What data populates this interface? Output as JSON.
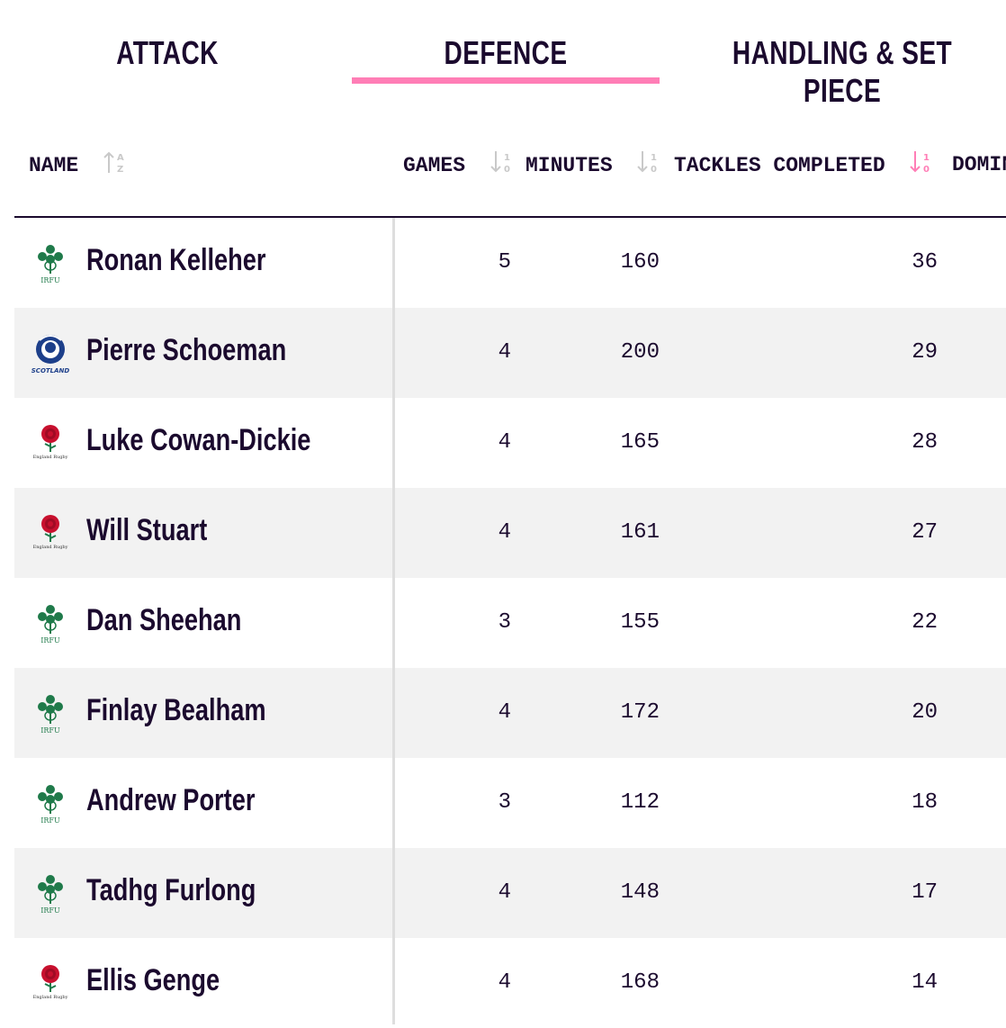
{
  "tabs": [
    {
      "label": "ATTACK",
      "active": false
    },
    {
      "label": "DEFENCE",
      "active": true
    },
    {
      "label": "HANDLING & SET PIECE",
      "active": false
    }
  ],
  "accent_color": "#ff7eb6",
  "columns": {
    "name": {
      "label": "NAME",
      "sort_icon": "sort-alpha-icon"
    },
    "games": {
      "label": "GAMES",
      "sort_icon": "sort-numeric-desc-icon"
    },
    "minutes": {
      "label": "MINUTES",
      "sort_icon": "sort-numeric-desc-icon"
    },
    "tackles": {
      "label": "TACKLES COMPLETED",
      "sort_icon": "sort-numeric-desc-icon",
      "active_sort": true
    },
    "next": {
      "label": "DOMIN"
    }
  },
  "team_logos": {
    "ireland": {
      "text": "IRFU",
      "color": "#1f7a4a"
    },
    "scotland": {
      "text": "SCOTLAND",
      "color": "#1d3f8a"
    },
    "england": {
      "text": "England Rugby",
      "color": "#c8102e"
    }
  },
  "players": [
    {
      "name": "Ronan Kelleher",
      "team": "ireland",
      "games": "5",
      "minutes": "160",
      "tackles": "36"
    },
    {
      "name": "Pierre Schoeman",
      "team": "scotland",
      "games": "4",
      "minutes": "200",
      "tackles": "29"
    },
    {
      "name": "Luke Cowan-Dickie",
      "team": "england",
      "games": "4",
      "minutes": "165",
      "tackles": "28"
    },
    {
      "name": "Will Stuart",
      "team": "england",
      "games": "4",
      "minutes": "161",
      "tackles": "27"
    },
    {
      "name": "Dan Sheehan",
      "team": "ireland",
      "games": "3",
      "minutes": "155",
      "tackles": "22"
    },
    {
      "name": "Finlay Bealham",
      "team": "ireland",
      "games": "4",
      "minutes": "172",
      "tackles": "20"
    },
    {
      "name": "Andrew Porter",
      "team": "ireland",
      "games": "3",
      "minutes": "112",
      "tackles": "18"
    },
    {
      "name": "Tadhg Furlong",
      "team": "ireland",
      "games": "4",
      "minutes": "148",
      "tackles": "17"
    },
    {
      "name": "Ellis Genge",
      "team": "england",
      "games": "4",
      "minutes": "168",
      "tackles": "14"
    }
  ]
}
